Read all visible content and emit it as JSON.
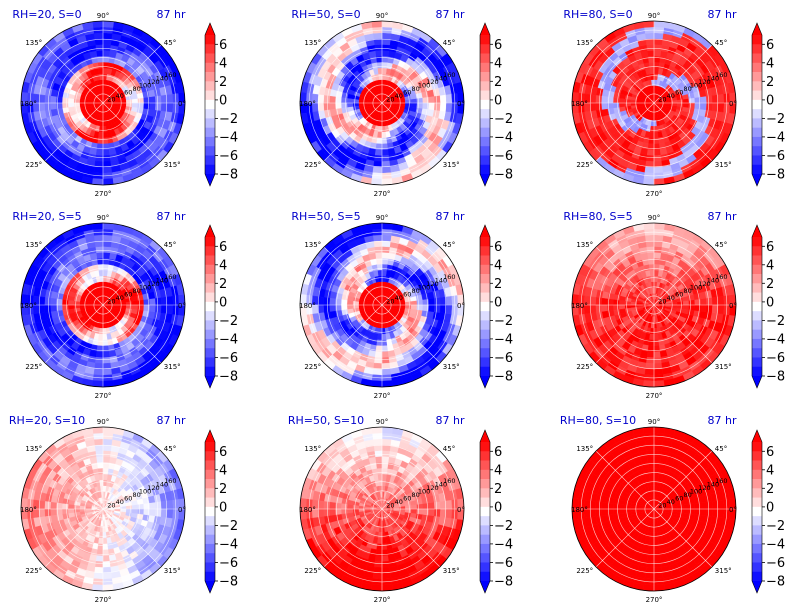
{
  "chart_data": {
    "type": "polar-contour",
    "layout": {
      "rows": 3,
      "cols": 3
    },
    "angle_labels": [
      "0°",
      "45°",
      "90°",
      "135°",
      "180°",
      "225°",
      "270°",
      "315°"
    ],
    "radial_ticks": [
      "20",
      "40",
      "60",
      "80",
      "100",
      "120",
      "140",
      "160"
    ],
    "rlim": [
      0,
      180
    ],
    "colorbar": {
      "ticks": [
        "6",
        "4",
        "2",
        "0",
        "−2",
        "−4",
        "−6",
        "−8"
      ],
      "range": [
        -8,
        7
      ],
      "colormap": "bwr",
      "extend": "both"
    },
    "colors": {
      "red": "#ff0000",
      "white": "#ffffff",
      "blue": "#0000ff",
      "title": "#0000cc"
    },
    "panels": [
      {
        "title": "RH=20, S=0",
        "time": "87 hr",
        "pattern": "core-red-outer-blue"
      },
      {
        "title": "RH=50, S=0",
        "time": "87 hr",
        "pattern": "core-red-mixed"
      },
      {
        "title": "RH=80, S=0",
        "time": "87 hr",
        "pattern": "mostly-red-blue-spiral"
      },
      {
        "title": "RH=20, S=5",
        "time": "87 hr",
        "pattern": "core-red-outer-blue"
      },
      {
        "title": "RH=50, S=5",
        "time": "87 hr",
        "pattern": "core-red-mixed"
      },
      {
        "title": "RH=80, S=5",
        "time": "87 hr",
        "pattern": "mostly-red-light-north"
      },
      {
        "title": "RH=20, S=10",
        "time": "87 hr",
        "pattern": "weak-white-blue"
      },
      {
        "title": "RH=50, S=10",
        "time": "87 hr",
        "pattern": "red-south-blue-north"
      },
      {
        "title": "RH=80, S=10",
        "time": "87 hr",
        "pattern": "all-red"
      }
    ]
  }
}
